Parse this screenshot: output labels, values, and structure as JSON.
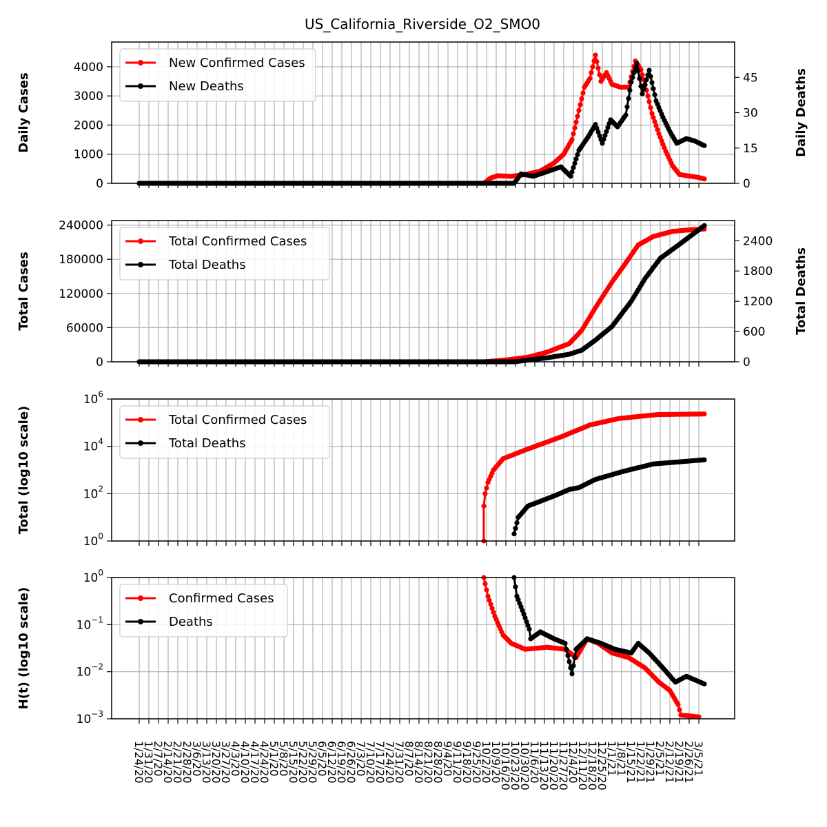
{
  "title": "US_California_Riverside_O2_SMO0",
  "colors": {
    "cases": "#ff0000",
    "deaths": "#000000",
    "grid": "#b0b0b0"
  },
  "x_ticks": [
    "1/24/20",
    "1/31/20",
    "2/7/20",
    "2/14/20",
    "2/21/20",
    "2/28/20",
    "3/6/20",
    "3/13/20",
    "3/20/20",
    "3/27/20",
    "4/3/20",
    "4/10/20",
    "4/17/20",
    "4/24/20",
    "5/1/20",
    "5/8/20",
    "5/15/20",
    "5/22/20",
    "5/29/20",
    "6/5/20",
    "6/12/20",
    "6/19/20",
    "6/26/20",
    "7/3/20",
    "7/10/20",
    "7/17/20",
    "7/24/20",
    "7/31/20",
    "8/7/20",
    "8/14/20",
    "8/21/20",
    "8/28/20",
    "9/4/20",
    "9/11/20",
    "9/18/20",
    "9/25/20",
    "10/2/20",
    "10/9/20",
    "10/16/20",
    "10/23/20",
    "10/30/20",
    "11/6/20",
    "11/13/20",
    "11/20/20",
    "11/27/20",
    "12/4/20",
    "12/11/20",
    "12/18/20",
    "12/25/20",
    "1/1/21",
    "1/8/21",
    "1/15/21",
    "1/22/21",
    "1/29/21",
    "2/5/21",
    "2/12/21",
    "2/19/21",
    "2/26/21",
    "3/5/21"
  ],
  "chart_data": [
    {
      "type": "line",
      "id": "daily",
      "ylabel": "Daily Cases",
      "y2label": "Daily Deaths",
      "ylim": [
        0,
        4850
      ],
      "y2lim": [
        0,
        60
      ],
      "yticks": [
        "0",
        "1000",
        "2000",
        "3000",
        "4000"
      ],
      "y2ticks": [
        "0",
        "15",
        "30",
        "45"
      ],
      "legend": [
        "New Confirmed Cases",
        "New Deaths"
      ],
      "series": [
        {
          "name": "New Confirmed Cases",
          "axis": "left",
          "points": [
            [
              "1/24/20",
              0
            ],
            [
              "9/30/20",
              0
            ],
            [
              "10/5/20",
              180
            ],
            [
              "10/10/20",
              260
            ],
            [
              "10/20/20",
              240
            ],
            [
              "10/30/20",
              300
            ],
            [
              "11/10/20",
              420
            ],
            [
              "11/20/20",
              700
            ],
            [
              "11/27/20",
              1000
            ],
            [
              "12/3/20",
              1500
            ],
            [
              "12/8/20",
              2500
            ],
            [
              "12/12/20",
              3300
            ],
            [
              "12/16/20",
              3600
            ],
            [
              "12/20/20",
              4400
            ],
            [
              "12/24/20",
              3500
            ],
            [
              "12/28/20",
              3800
            ],
            [
              "1/1/21",
              3400
            ],
            [
              "1/7/21",
              3300
            ],
            [
              "1/13/21",
              3300
            ],
            [
              "1/18/21",
              4200
            ],
            [
              "1/22/21",
              3900
            ],
            [
              "1/26/21",
              3200
            ],
            [
              "1/30/21",
              2400
            ],
            [
              "2/4/21",
              1700
            ],
            [
              "2/9/21",
              1100
            ],
            [
              "2/14/21",
              600
            ],
            [
              "2/19/21",
              300
            ],
            [
              "2/26/21",
              250
            ],
            [
              "3/5/21",
              200
            ],
            [
              "3/9/21",
              150
            ]
          ]
        },
        {
          "name": "New Deaths",
          "axis": "right",
          "points": [
            [
              "1/24/20",
              0
            ],
            [
              "10/22/20",
              0
            ],
            [
              "10/27/20",
              4
            ],
            [
              "11/5/20",
              3
            ],
            [
              "11/15/20",
              5
            ],
            [
              "11/25/20",
              7
            ],
            [
              "12/2/20",
              3
            ],
            [
              "12/8/20",
              14
            ],
            [
              "12/15/20",
              20
            ],
            [
              "12/20/20",
              25
            ],
            [
              "12/25/20",
              17
            ],
            [
              "12/31/20",
              27
            ],
            [
              "1/5/21",
              24
            ],
            [
              "1/11/21",
              29
            ],
            [
              "1/15/21",
              43
            ],
            [
              "1/19/21",
              51
            ],
            [
              "1/23/21",
              38
            ],
            [
              "1/28/21",
              48
            ],
            [
              "2/2/21",
              35
            ],
            [
              "2/7/21",
              28
            ],
            [
              "2/12/21",
              22
            ],
            [
              "2/17/21",
              17
            ],
            [
              "2/24/21",
              19
            ],
            [
              "3/2/21",
              18
            ],
            [
              "3/9/21",
              16
            ]
          ]
        }
      ]
    },
    {
      "type": "line",
      "id": "total",
      "ylabel": "Total Cases",
      "y2label": "Total Deaths",
      "ylim": [
        0,
        248000
      ],
      "y2lim": [
        0,
        2800
      ],
      "yticks": [
        "0",
        "60000",
        "120000",
        "180000",
        "240000"
      ],
      "y2ticks": [
        "0",
        "600",
        "1200",
        "1800",
        "2400"
      ],
      "legend": [
        "Total Confirmed Cases",
        "Total Deaths"
      ],
      "series": [
        {
          "name": "Total Confirmed Cases",
          "axis": "left",
          "points": [
            [
              "1/24/20",
              0
            ],
            [
              "9/30/20",
              0
            ],
            [
              "10/15/20",
              3000
            ],
            [
              "11/1/20",
              8000
            ],
            [
              "11/15/20",
              17000
            ],
            [
              "12/1/20",
              32000
            ],
            [
              "12/10/20",
              55000
            ],
            [
              "12/20/20",
              95000
            ],
            [
              "1/1/21",
              140000
            ],
            [
              "1/10/21",
              170000
            ],
            [
              "1/20/21",
              205000
            ],
            [
              "1/31/21",
              220000
            ],
            [
              "2/14/21",
              229000
            ],
            [
              "2/28/21",
              232000
            ],
            [
              "3/9/21",
              233000
            ]
          ]
        },
        {
          "name": "Total Deaths",
          "axis": "right",
          "points": [
            [
              "1/24/20",
              0
            ],
            [
              "10/22/20",
              0
            ],
            [
              "11/15/20",
              80
            ],
            [
              "12/1/20",
              150
            ],
            [
              "12/10/20",
              230
            ],
            [
              "12/20/20",
              430
            ],
            [
              "1/1/21",
              700
            ],
            [
              "1/15/21",
              1200
            ],
            [
              "1/25/21",
              1650
            ],
            [
              "2/5/21",
              2050
            ],
            [
              "2/20/21",
              2350
            ],
            [
              "3/9/21",
              2700
            ]
          ]
        }
      ]
    },
    {
      "type": "line",
      "id": "log",
      "ylabel": "Total (log10 scale)",
      "yscale": "log",
      "ylim": [
        1,
        1000000
      ],
      "yticks": [
        [
          "10",
          "0"
        ],
        [
          "10",
          "2"
        ],
        [
          "10",
          "4"
        ],
        [
          "10",
          "6"
        ]
      ],
      "legend": [
        "Total Confirmed Cases",
        "Total Deaths"
      ],
      "series": [
        {
          "name": "Total Confirmed Cases",
          "axis": "left",
          "points": [
            [
              "9/30/20",
              1
            ],
            [
              "9/30/20",
              30
            ],
            [
              "10/1/20",
              100
            ],
            [
              "10/3/20",
              300
            ],
            [
              "10/7/20",
              1000
            ],
            [
              "10/14/20",
              3000
            ],
            [
              "10/30/20",
              7000
            ],
            [
              "11/25/20",
              25000
            ],
            [
              "12/16/20",
              80000
            ],
            [
              "1/6/21",
              150000
            ],
            [
              "2/3/21",
              220000
            ],
            [
              "3/9/21",
              233000
            ]
          ]
        },
        {
          "name": "Total Deaths",
          "axis": "left",
          "points": [
            [
              "10/22/20",
              2
            ],
            [
              "10/25/20",
              10
            ],
            [
              "11/1/20",
              30
            ],
            [
              "11/20/20",
              80
            ],
            [
              "12/1/20",
              150
            ],
            [
              "12/8/20",
              180
            ],
            [
              "12/20/20",
              400
            ],
            [
              "1/10/21",
              900
            ],
            [
              "1/31/21",
              1800
            ],
            [
              "3/9/21",
              2700
            ]
          ]
        }
      ]
    },
    {
      "type": "line",
      "id": "ht",
      "ylabel": "H(t) (log10 scale)",
      "yscale": "log",
      "ylim": [
        0.001,
        1
      ],
      "yticks": [
        [
          "10",
          "−3"
        ],
        [
          "10",
          "−2"
        ],
        [
          "10",
          "−1"
        ],
        [
          "10",
          "0"
        ]
      ],
      "legend": [
        "Confirmed Cases",
        "Deaths"
      ],
      "series": [
        {
          "name": "Confirmed Cases",
          "axis": "left",
          "points": [
            [
              "9/30/20",
              1
            ],
            [
              "10/3/20",
              0.4
            ],
            [
              "10/8/20",
              0.15
            ],
            [
              "10/14/20",
              0.06
            ],
            [
              "10/20/20",
              0.04
            ],
            [
              "10/30/20",
              0.03
            ],
            [
              "11/15/20",
              0.033
            ],
            [
              "11/28/20",
              0.03
            ],
            [
              "12/6/20",
              0.02
            ],
            [
              "12/14/20",
              0.05
            ],
            [
              "12/22/20",
              0.04
            ],
            [
              "1/1/21",
              0.025
            ],
            [
              "1/13/21",
              0.02
            ],
            [
              "1/25/21",
              0.012
            ],
            [
              "2/4/21",
              0.006
            ],
            [
              "2/12/21",
              0.004
            ],
            [
              "2/18/21",
              0.002
            ],
            [
              "2/20/21",
              0.0012
            ],
            [
              "3/5/21",
              0.0011
            ]
          ]
        },
        {
          "name": "Deaths",
          "axis": "left",
          "points": [
            [
              "10/22/20",
              1
            ],
            [
              "10/24/20",
              0.4
            ],
            [
              "10/28/20",
              0.2
            ],
            [
              "11/2/20",
              0.08
            ],
            [
              "11/3/20",
              0.05
            ],
            [
              "11/10/20",
              0.07
            ],
            [
              "11/20/20",
              0.05
            ],
            [
              "11/28/20",
              0.04
            ],
            [
              "12/3/20",
              0.009
            ],
            [
              "12/6/20",
              0.03
            ],
            [
              "12/14/20",
              0.05
            ],
            [
              "12/24/20",
              0.04
            ],
            [
              "1/3/21",
              0.03
            ],
            [
              "1/15/21",
              0.025
            ],
            [
              "1/20/21",
              0.04
            ],
            [
              "1/28/21",
              0.025
            ],
            [
              "2/7/21",
              0.012
            ],
            [
              "2/16/21",
              0.006
            ],
            [
              "2/24/21",
              0.008
            ],
            [
              "3/9/21",
              0.0055
            ]
          ]
        }
      ]
    }
  ]
}
